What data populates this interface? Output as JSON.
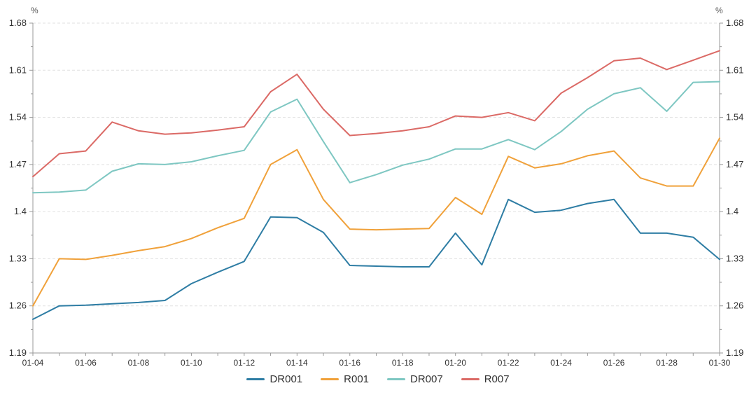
{
  "chart": {
    "unit_label_left": "%",
    "unit_label_right": "%"
  },
  "chart_data": {
    "type": "line",
    "title": "",
    "xlabel": "",
    "ylabel": "%",
    "x": [
      "01-04",
      "01-05",
      "01-06",
      "01-07",
      "01-08",
      "01-09",
      "01-10",
      "01-11",
      "01-12",
      "01-13",
      "01-14",
      "01-15",
      "01-16",
      "01-17",
      "01-18",
      "01-19",
      "01-20",
      "01-21",
      "01-22",
      "01-23",
      "01-24",
      "01-25",
      "01-26",
      "01-27",
      "01-28",
      "01-29",
      "01-30"
    ],
    "x_tick_label_interval": 2,
    "y_axis": {
      "min": 1.19,
      "max": 1.68,
      "tick_step": 0.07,
      "tick_labels": [
        "1.68",
        "1.61",
        "1.54",
        "1.47",
        "1.4",
        "1.33",
        "1.26",
        "1.19"
      ],
      "minor_ticks_per_interval": 1,
      "mirrored_right_axis": true
    },
    "grid": {
      "horizontal_dashed_gridlines": true,
      "vertical_gridlines": false,
      "gridline_color": "#e0e0e0"
    },
    "legend": {
      "position": "bottom-center",
      "items": [
        "DR001",
        "R001",
        "DR007",
        "R007"
      ]
    },
    "series": [
      {
        "name": "DR001",
        "color": "#2e7da4",
        "values": [
          1.24,
          1.26,
          1.261,
          1.263,
          1.265,
          1.268,
          1.293,
          1.31,
          1.326,
          1.392,
          1.391,
          1.369,
          1.32,
          1.319,
          1.318,
          1.318,
          1.368,
          1.321,
          1.418,
          1.399,
          1.402,
          1.412,
          1.418,
          1.368,
          1.368,
          1.362,
          1.329
        ]
      },
      {
        "name": "R001",
        "color": "#f0a13a",
        "values": [
          1.26,
          1.33,
          1.329,
          1.335,
          1.342,
          1.348,
          1.36,
          1.376,
          1.39,
          1.47,
          1.492,
          1.418,
          1.374,
          1.373,
          1.374,
          1.375,
          1.421,
          1.396,
          1.482,
          1.465,
          1.471,
          1.483,
          1.49,
          1.45,
          1.438,
          1.438,
          1.509
        ]
      },
      {
        "name": "DR007",
        "color": "#7ec7c2",
        "values": [
          1.428,
          1.429,
          1.432,
          1.46,
          1.471,
          1.47,
          1.474,
          1.483,
          1.491,
          1.548,
          1.567,
          1.504,
          1.443,
          1.455,
          1.469,
          1.478,
          1.493,
          1.493,
          1.507,
          1.492,
          1.519,
          1.552,
          1.575,
          1.584,
          1.549,
          1.592,
          1.593
        ]
      },
      {
        "name": "R007",
        "color": "#db6a66",
        "values": [
          1.452,
          1.486,
          1.49,
          1.533,
          1.52,
          1.515,
          1.517,
          1.521,
          1.526,
          1.578,
          1.604,
          1.552,
          1.513,
          1.516,
          1.52,
          1.526,
          1.542,
          1.54,
          1.547,
          1.535,
          1.576,
          1.599,
          1.624,
          1.628,
          1.611,
          1.625,
          1.639
        ]
      }
    ]
  },
  "axis_style": {
    "axis_line_color": "#999999",
    "tick_label_color": "#333333"
  }
}
